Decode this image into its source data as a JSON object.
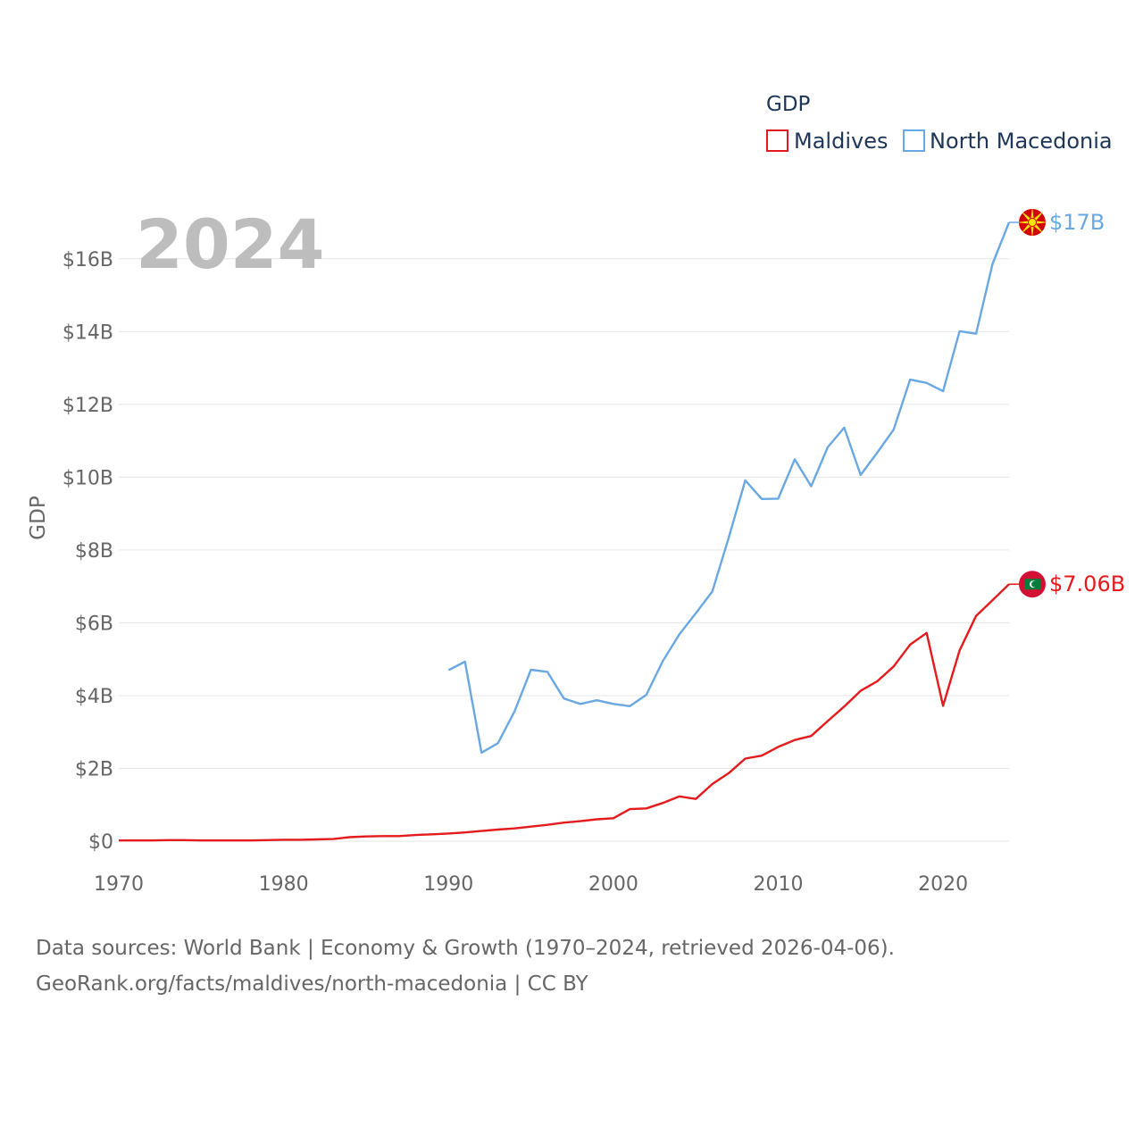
{
  "chart_data": {
    "type": "line",
    "title": "GDP",
    "year_label": "2024",
    "ylabel": "GDP",
    "xlabel": "",
    "xlim": [
      1970,
      2024
    ],
    "ylim": [
      0,
      17
    ],
    "x_ticks": [
      1970,
      1980,
      1990,
      2000,
      2010,
      2020
    ],
    "x_tick_labels": [
      "1970",
      "1980",
      "1990",
      "2000",
      "2010",
      "2020"
    ],
    "y_ticks": [
      0,
      2,
      4,
      6,
      8,
      10,
      12,
      14,
      16
    ],
    "y_tick_labels": [
      "$0",
      "$2B",
      "$4B",
      "$6B",
      "$8B",
      "$10B",
      "$12B",
      "$14B",
      "$16B"
    ],
    "legend_title": "GDP",
    "legend_position": "top-right",
    "series": [
      {
        "name": "Maldives",
        "color": "#e41a1c",
        "end_label": "$7.06B",
        "flag_icon": "maldives-flag-icon",
        "x": [
          1970,
          1971,
          1972,
          1973,
          1974,
          1975,
          1976,
          1977,
          1978,
          1979,
          1980,
          1981,
          1982,
          1983,
          1984,
          1985,
          1986,
          1987,
          1988,
          1989,
          1990,
          1991,
          1992,
          1993,
          1994,
          1995,
          1996,
          1997,
          1998,
          1999,
          2000,
          2001,
          2002,
          2003,
          2004,
          2005,
          2006,
          2007,
          2008,
          2009,
          2010,
          2011,
          2012,
          2013,
          2014,
          2015,
          2016,
          2017,
          2018,
          2019,
          2020,
          2021,
          2022,
          2023,
          2024
        ],
        "values": [
          0.02,
          0.02,
          0.02,
          0.03,
          0.03,
          0.02,
          0.02,
          0.02,
          0.02,
          0.03,
          0.04,
          0.04,
          0.05,
          0.06,
          0.11,
          0.13,
          0.14,
          0.14,
          0.17,
          0.19,
          0.21,
          0.24,
          0.28,
          0.32,
          0.35,
          0.4,
          0.45,
          0.51,
          0.55,
          0.6,
          0.63,
          0.88,
          0.9,
          1.05,
          1.23,
          1.16,
          1.57,
          1.87,
          2.27,
          2.35,
          2.59,
          2.78,
          2.89,
          3.3,
          3.7,
          4.13,
          4.39,
          4.8,
          5.4,
          5.72,
          3.72,
          5.24,
          6.19,
          6.62,
          7.06
        ]
      },
      {
        "name": "North Macedonia",
        "color": "#6aa8e3",
        "end_label": "$17B",
        "flag_icon": "north-macedonia-flag-icon",
        "x": [
          1990,
          1991,
          1992,
          1993,
          1994,
          1995,
          1996,
          1997,
          1998,
          1999,
          2000,
          2001,
          2002,
          2003,
          2004,
          2005,
          2006,
          2007,
          2008,
          2009,
          2010,
          2011,
          2012,
          2013,
          2014,
          2015,
          2016,
          2017,
          2018,
          2019,
          2020,
          2021,
          2022,
          2023,
          2024
        ],
        "values": [
          4.7,
          4.93,
          2.43,
          2.69,
          3.56,
          4.71,
          4.65,
          3.92,
          3.77,
          3.87,
          3.77,
          3.71,
          4.02,
          4.95,
          5.68,
          6.26,
          6.86,
          8.34,
          9.91,
          9.4,
          9.41,
          10.49,
          9.75,
          10.82,
          11.36,
          10.06,
          10.67,
          11.31,
          12.68,
          12.59,
          12.36,
          14.01,
          13.94,
          15.86,
          17.0
        ]
      }
    ]
  },
  "footer": {
    "line1": "Data sources: World Bank | Economy & Growth (1970–2024, retrieved 2026-04-06).",
    "line2": "GeoRank.org/facts/maldives/north-macedonia | CC BY"
  }
}
